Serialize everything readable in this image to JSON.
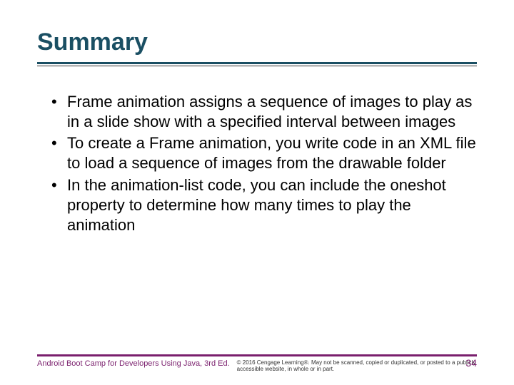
{
  "title": {
    "text": "Summary",
    "color": "#1a4f63"
  },
  "rules": {
    "thick_color": "#1a4f63",
    "thin_color": "#333333"
  },
  "bullets": [
    "Frame animation assigns a sequence of images to play as in a slide show with a specified interval between images",
    "To create a Frame animation, you write code in an XML file to load a sequence of images from the drawable folder",
    "In the animation-list code, you can include the oneshot property to determine how many times to play the animation"
  ],
  "body_text_color": "#000000",
  "footer": {
    "rule_color": "#7a1f6d",
    "book": "Android Boot Camp for Developers Using Java, 3rd Ed.",
    "book_color": "#7a1f6d",
    "copyright": "© 2016 Cengage Learning®. May not be scanned, copied or duplicated, or posted to a publicly accessible website, in whole or in part.",
    "copyright_color": "#333333",
    "page_number": "34",
    "page_number_color": "#7a1f6d"
  }
}
